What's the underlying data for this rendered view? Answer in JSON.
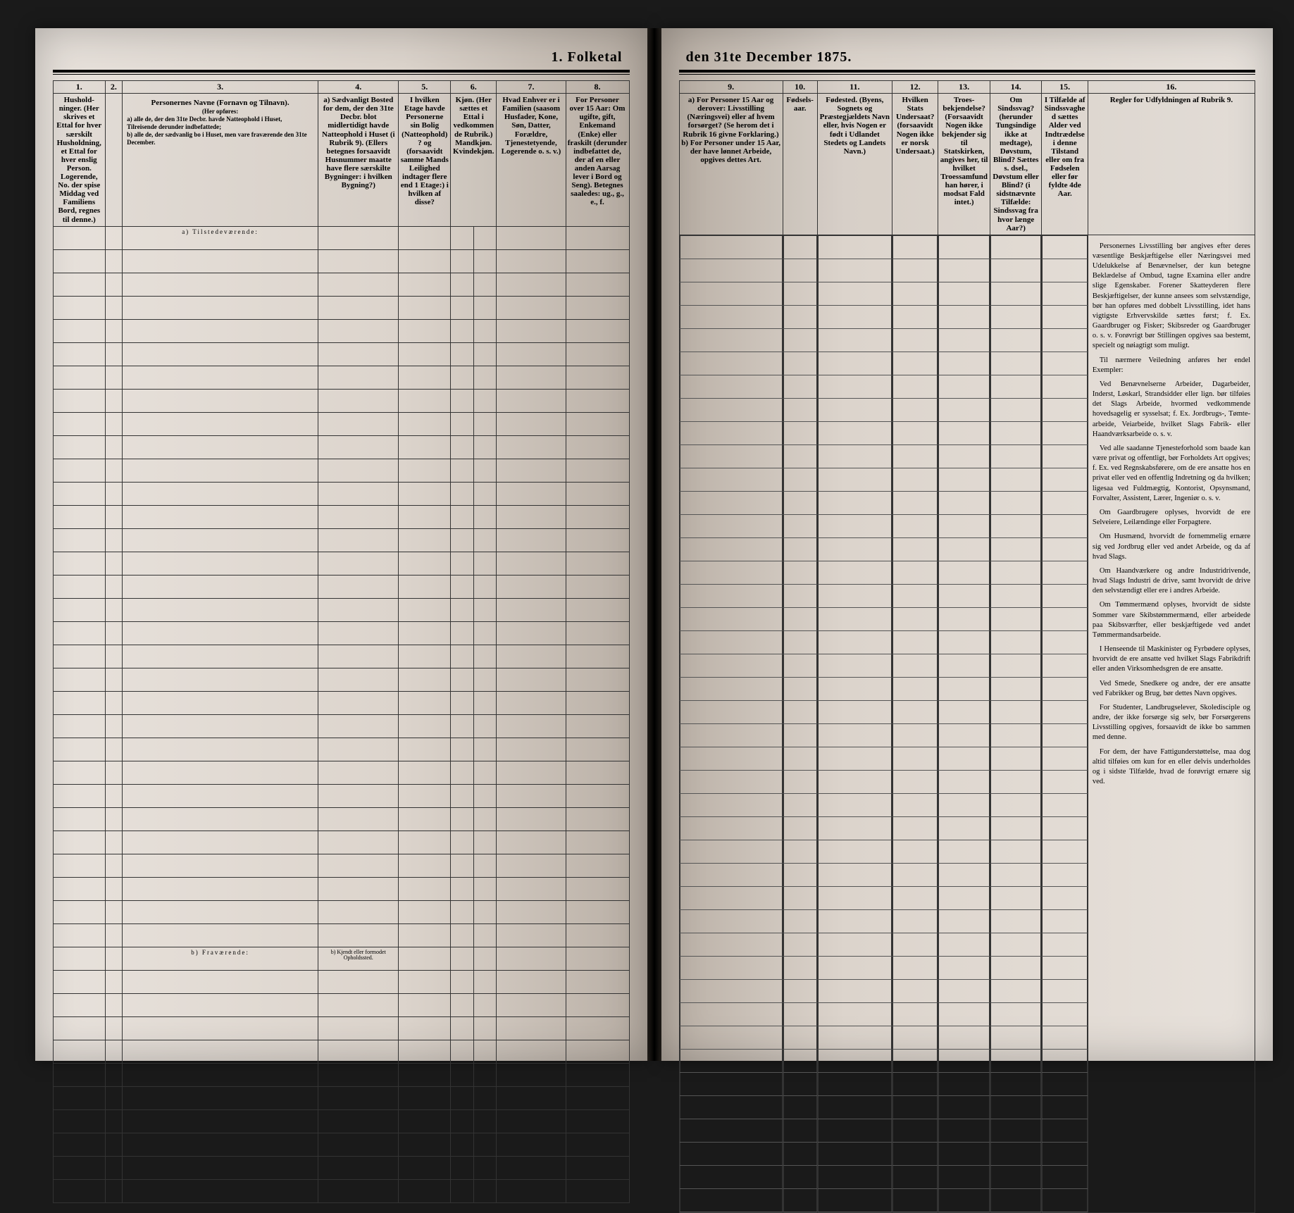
{
  "title_left": "1. Folketal",
  "title_right": "den 31te December 1875.",
  "left_page": {
    "col_nums": [
      "1.",
      "2.",
      "3.",
      "4.",
      "5.",
      "6.",
      "7.",
      "8."
    ],
    "headers": {
      "c1": "Hushold-ninger. (Her skrives et Ettal for hver særskilt Husholdning, et Ettal for hver enslig Person. Logerende, No. der spise Middag ved Familiens Bord, regnes til denne.)",
      "c3_title": "Personernes Navne (Fornavn og Tilnavn).",
      "c3_sub": "(Her opføres:",
      "c3_a": "a) alle de, der den 31te Decbr. havde Natteophold i Huset, Tilreisende derunder indbefattede;",
      "c3_b": "b) alle de, der sædvanlig bo i Huset, men vare fraværende den 31te December.",
      "c4": "a) Sædvanligt Bosted for dem, der den 31te Decbr. blot midlertidigt havde Natteophold i Huset (i Rubrik 9). (Ellers betegnes forsaavidt Husnummer maatte have flere særskilte Bygninger: i hvilken Bygning?)",
      "c5": "I hvilken Etage havde Personerne sin Bolig (Natteophold)? og (forsaavidt samme Mands Leilighed indtager flere end 1 Etage:) i hvilken af disse?",
      "c6": "Kjøn. (Her sættes et Ettal i vedkommende Rubrik.) Mandkjøn. Kvindekjøn.",
      "c7": "Hvad Enhver er i Familien (saasom Husfader, Kone, Søn, Datter, Forældre, Tjenestetyende, Logerende o. s. v.)",
      "c8": "For Personer over 15 Aar: Om ugifte, gift, Enkemand (Enke) eller fraskilt (derunder indbefattet de, der af en eller anden Aarsag lever i Bord og Seng). Betegnes saaledes: ug., g., e., f."
    },
    "section_a": "a) Tilstedeværende:",
    "section_b": "b) Fraværende:",
    "section_b_c4": "b) Kjendt eller formodet Opholdssted.",
    "rows_a": 30,
    "rows_b": 10
  },
  "right_page": {
    "col_nums": [
      "9.",
      "10.",
      "11.",
      "12.",
      "13.",
      "14.",
      "15.",
      "16."
    ],
    "headers": {
      "c9": "a) For Personer 15 Aar og derover: Livsstilling (Næringsvei) eller af hvem forsørget? (Se herom det i Rubrik 16 givne Forklaring.) b) For Personer under 15 Aar, der have lønnet Arbeide, opgives dettes Art.",
      "c10": "Fødsels-aar.",
      "c11": "Fødested. (Byens, Sognets og Præstegjældets Navn eller, hvis Nogen er født i Udlandet Stedets og Landets Navn.)",
      "c12": "Hvilken Stats Undersaat? (forsaavidt Nogen ikke er norsk Undersaat.)",
      "c13": "Troes-bekjendelse? (Forsaavidt Nogen ikke bekjender sig til Statskirken, angives her, til hvilket Troessamfund han hører, i modsat Fald intet.)",
      "c14": "Om Sindssvag? (herunder Tungsindige ikke at medtage), Døvstum, Blind? Sættes s. dsel., Døvstum eller Blind? (i sidstnævnte Tilfælde: Sindssvag fra hvor længe Aar?)",
      "c15": "I Tilfælde af Sindssvaghed sættes Alder ved Indtrædelse i denne Tilstand eller om fra Fødselen eller før fyldte 4de Aar.",
      "c16": "Regler for Udfyldningen af Rubrik 9."
    },
    "instructions_title": "Regler for Udfyldningen af Rubrik 9.",
    "instructions_body": "Personernes Livsstilling bør angives efter deres væsentlige Beskjæftigelse eller Næringsvei med Udelukkelse af Benævnelser, der kun betegne Beklædelse af Ombud, tagne Examina eller andre slige Egenskaber. Forener Skatteyderen flere Beskjæftigelser, der kunne ansees som selvstændige, bør han opføres med dobbelt Livsstilling, idet hans vigtigste Erhvervskilde sættes først; f. Ex. Gaardbruger og Fisker; Skibsreder og Gaardbruger o. s. v. Forøvrigt bør Stillingen opgives saa bestemt, specielt og nøiagtigt som muligt.\n\nTil nærmere Veiledning anføres her endel Exempler:\n\nVed Benævnelserne Arbeider, Dagarbeider, Inderst, Løskarl, Strandsidder eller lign. bør tilføies det Slags Arbeide, hvormed vedkommende hovedsagelig er sysselsat; f. Ex. Jordbrugs-, Tømte-arbeide, Veiarbeide, hvilket Slags Fabrik- eller Haandværksarbeide o. s. v.\n\nVed alle saadanne Tjenesteforhold som baade kan være privat og offentligt, bør Forholdets Art opgives; f. Ex. ved Regnskabsførere, om de ere ansatte hos en privat eller ved en offentlig Indretning og da hvilken; ligesaa ved Fuldmægtig, Kontorist, Opsynsmand, Forvalter, Assistent, Lærer, Ingeniør o. s. v.\n\nOm Gaardbrugere oplyses, hvorvidt de ere Selveiere, Leilændinge eller Forpagtere.\n\nOm Husmænd, hvorvidt de fornemmelig ernære sig ved Jordbrug eller ved andet Arbeide, og da af hvad Slags.\n\nOm Haandværkere og andre Industridrivende, hvad Slags Industri de drive, samt hvorvidt de drive den selvstændigt eller ere i andres Arbeide.\n\nOm Tømmermænd oplyses, hvorvidt de sidste Sommer vare Skibstømmermænd, eller arbeidede paa Skibsværfter, eller beskjæftigede ved andet Tømmermandsarbeide.\n\nI Henseende til Maskinister og Fyrbødere oplyses, hvorvidt de ere ansatte ved hvilket Slags Fabrikdrift eller anden Virksomhedsgren de ere ansatte.\n\nVed Smede, Snedkere og andre, der ere ansatte ved Fabrikker og Brug, bør dettes Navn opgives.\n\nFor Studenter, Landbrugselever, Skoledisciple og andre, der ikke forsørge sig selv, bør Forsørgerens Livsstilling opgives, forsaavidt de ikke bo sammen med denne.\n\nFor dem, der have Fattigunderstøttelse, maa dog altid tilføies om kun for en eller delvis underholdes og i sidste Tilfælde, hvad de forøvrigt ernære sig ved."
  },
  "colors": {
    "ink": "#1a1a1a",
    "paper_light": "#e8e2dc",
    "paper_shadow": "#b8aea4",
    "rule": "#000000"
  }
}
